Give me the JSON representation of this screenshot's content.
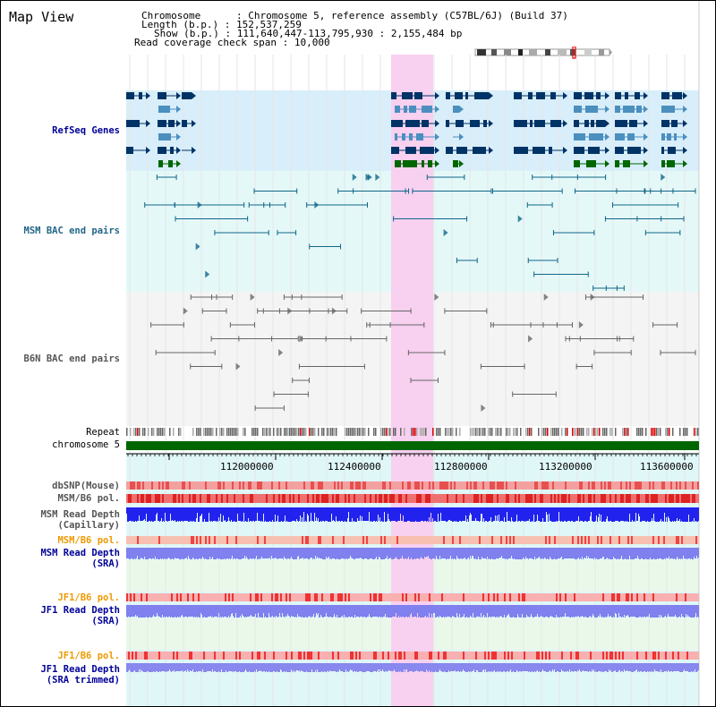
{
  "title": "Map View",
  "header": {
    "chromosome_label": "Chromosome",
    "chromosome_value": "Chromosome 5, reference assembly (C57BL/6J) (Build 37)",
    "length_label": "Length (b.p.)",
    "length_value": "152,537,259",
    "show_label": "Show (b.p.)",
    "show_value": "111,640,447-113,795,930 : 2,155,484 bp",
    "coverage_label": "Read coverage check span",
    "coverage_value": "10,000"
  },
  "tracks": {
    "refseq": "RefSeq Genes",
    "msm_bac": "MSM BAC end pairs",
    "b6n_bac": "B6N BAC end pairs",
    "repeat": "Repeat",
    "chromosome": "chromosome 5",
    "dbsnp": "dbSNP(Mouse)",
    "msm_b6_pol": "MSM/B6 pol.",
    "msm_read_depth_cap_1": "MSM Read Depth",
    "msm_read_depth_cap_2": "(Capillary)",
    "msm_b6_pol_2": "MSM/B6 pol.",
    "msm_read_depth_sra_1": "MSM Read Depth",
    "msm_read_depth_sra_2": "(SRA)",
    "jf1_b6_pol": "JF1/B6 pol.",
    "jf1_read_depth_sra_1": "JF1 Read Depth",
    "jf1_read_depth_sra_2": "(SRA)",
    "jf1_b6_pol_2": "JF1/B6 pol.",
    "jf1_read_depth_trim_1": "JF1 Read Depth",
    "jf1_read_depth_trim_2": "(SRA trimmed)"
  },
  "axis": {
    "ticks": [
      "112000000",
      "112400000",
      "112800000",
      "113200000",
      "113600000"
    ]
  },
  "colors": {
    "highlight": "#f8d0f0",
    "gene_navy": "#003366",
    "gene_blue": "#4b8fbf",
    "gene_green": "#006600",
    "bac_msm": "#116688",
    "bac_b6n": "#666666",
    "chromosome_bar": "#006600",
    "label_blue": "#000099",
    "label_teal": "#226688",
    "label_orange": "#ee9900"
  }
}
